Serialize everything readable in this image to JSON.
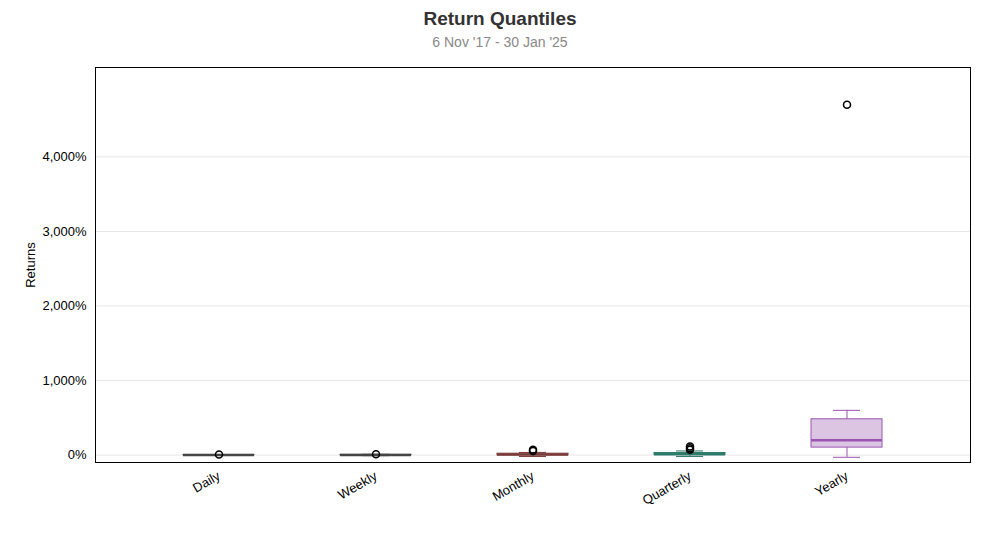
{
  "chart_data": {
    "type": "box",
    "title": "Return Quantiles",
    "subtitle": "6 Nov '17 - 30 Jan '25",
    "ylabel": "Returns",
    "categories": [
      "Daily",
      "Weekly",
      "Monthly",
      "Quarterly",
      "Yearly"
    ],
    "boxes": [
      {
        "q1": -0.5,
        "median": 0.3,
        "q3": 1.0,
        "whislo": -3.0,
        "whishi": 4.0,
        "fliers": [
          6.5
        ]
      },
      {
        "q1": -1.5,
        "median": 0.5,
        "q3": 2.5,
        "whislo": -8.0,
        "whishi": 10.0,
        "fliers": [
          12.0
        ]
      },
      {
        "q1": -4.0,
        "median": 6.0,
        "q3": 18.0,
        "whislo": -20.0,
        "whishi": 35.0,
        "fliers": [
          55.0,
          70.0
        ]
      },
      {
        "q1": 1.0,
        "median": 10.0,
        "q3": 28.0,
        "whislo": -20.0,
        "whishi": 55.0,
        "fliers": [
          70.0,
          90.0,
          115.0
        ]
      },
      {
        "q1": 100.0,
        "median": 200.0,
        "q3": 480.0,
        "whislo": -30.0,
        "whishi": 600.0,
        "fliers": [
          4700.0
        ]
      }
    ],
    "colors": [
      "#454545",
      "#454545",
      "#7a3b3b",
      "#2d7a6a",
      "#9a55b0"
    ],
    "ylim": [
      -100,
      5200
    ],
    "yticks": [
      {
        "value": 0,
        "label": "0%"
      },
      {
        "value": 1000,
        "label": "1,000%"
      },
      {
        "value": 2000,
        "label": "2,000%"
      },
      {
        "value": 3000,
        "label": "3,000%"
      },
      {
        "value": 4000,
        "label": "4,000%"
      }
    ],
    "grid": true
  }
}
